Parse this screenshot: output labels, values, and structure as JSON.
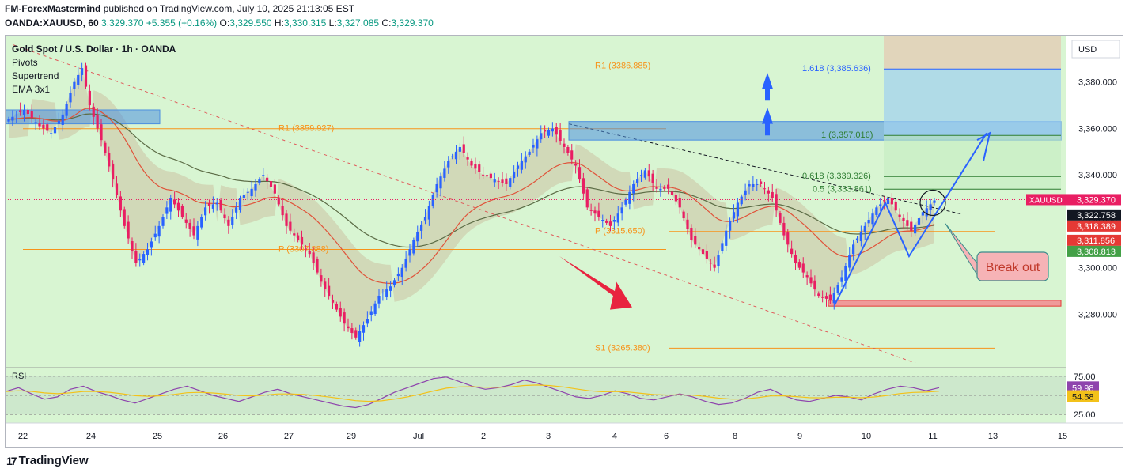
{
  "header": {
    "publisher": "FM-ForexMastermind",
    "published_text": "published on TradingView.com, July 10, 2025 21:13:05 EST",
    "symbol": "OANDA:XAUUSD, 60",
    "last": "3,329.370",
    "change": "+5.355 (+0.16%)",
    "o_label": "O:",
    "o": "3,329.550",
    "h_label": "H:",
    "h": "3,330.315",
    "l_label": "L:",
    "l": "3,327.085",
    "c_label": "C:",
    "c": "3,329.370"
  },
  "legend": {
    "title": "Gold Spot / U.S. Dollar · 1h · OANDA",
    "items": [
      "Pivots",
      "Supertrend",
      "EMA 3x1"
    ]
  },
  "rsi_label": "RSI",
  "currency": "USD",
  "footer": {
    "logo_glyph": "17",
    "brand": "TradingView"
  },
  "colors": {
    "background": "#d8f5d2",
    "up_candle": "#2962ff",
    "down_candle": "#e91e63",
    "pivot": "#f7931a",
    "zone": "#4c8fe0",
    "ema_fast": "#e0533a",
    "ema_slow": "#5b6b45",
    "rsi": "#8e44ad",
    "rsi_ma": "#f3c21a"
  },
  "chart_data": {
    "type": "candlestick",
    "x_ticks": [
      "22",
      "24",
      "25",
      "26",
      "27",
      "29",
      "Jul",
      "2",
      "3",
      "4",
      "6",
      "8",
      "9",
      "10",
      "11",
      "13",
      "15"
    ],
    "y_ticks": [
      "3,380.000",
      "3,360.000",
      "3,340.000",
      "3,320.000",
      "3,300.000",
      "3,280.000"
    ],
    "ylim": [
      3257,
      3400
    ],
    "close_path": [
      [
        0,
        3364
      ],
      [
        4,
        3368
      ],
      [
        8,
        3361
      ],
      [
        11,
        3358
      ],
      [
        14,
        3366
      ],
      [
        17,
        3380
      ],
      [
        19,
        3386
      ],
      [
        21,
        3370
      ],
      [
        24,
        3355
      ],
      [
        27,
        3338
      ],
      [
        30,
        3318
      ],
      [
        33,
        3302
      ],
      [
        36,
        3308
      ],
      [
        39,
        3318
      ],
      [
        42,
        3330
      ],
      [
        45,
        3322
      ],
      [
        48,
        3314
      ],
      [
        51,
        3326
      ],
      [
        54,
        3328
      ],
      [
        57,
        3318
      ],
      [
        60,
        3330
      ],
      [
        63,
        3334
      ],
      [
        66,
        3340
      ],
      [
        69,
        3332
      ],
      [
        72,
        3318
      ],
      [
        75,
        3312
      ],
      [
        78,
        3306
      ],
      [
        81,
        3294
      ],
      [
        84,
        3285
      ],
      [
        87,
        3276
      ],
      [
        90,
        3270
      ],
      [
        93,
        3278
      ],
      [
        96,
        3288
      ],
      [
        99,
        3292
      ],
      [
        102,
        3300
      ],
      [
        105,
        3312
      ],
      [
        108,
        3322
      ],
      [
        111,
        3336
      ],
      [
        114,
        3346
      ],
      [
        117,
        3352
      ],
      [
        120,
        3344
      ],
      [
        123,
        3340
      ],
      [
        126,
        3338
      ],
      [
        129,
        3336
      ],
      [
        132,
        3344
      ],
      [
        135,
        3350
      ],
      [
        138,
        3358
      ],
      [
        141,
        3360
      ],
      [
        144,
        3352
      ],
      [
        147,
        3344
      ],
      [
        150,
        3326
      ],
      [
        153,
        3322
      ],
      [
        156,
        3318
      ],
      [
        159,
        3326
      ],
      [
        162,
        3336
      ],
      [
        165,
        3342
      ],
      [
        168,
        3334
      ],
      [
        171,
        3334
      ],
      [
        174,
        3326
      ],
      [
        177,
        3312
      ],
      [
        180,
        3306
      ],
      [
        183,
        3300
      ],
      [
        186,
        3316
      ],
      [
        189,
        3328
      ],
      [
        192,
        3336
      ],
      [
        195,
        3336
      ],
      [
        198,
        3330
      ],
      [
        201,
        3314
      ],
      [
        204,
        3302
      ],
      [
        207,
        3296
      ],
      [
        210,
        3288
      ],
      [
        213,
        3286
      ],
      [
        216,
        3296
      ],
      [
        219,
        3310
      ],
      [
        222,
        3318
      ],
      [
        225,
        3326
      ],
      [
        228,
        3330
      ],
      [
        231,
        3322
      ],
      [
        234,
        3316
      ],
      [
        237,
        3324
      ],
      [
        240,
        3329
      ]
    ],
    "pivots": [
      {
        "label": "R1 (3386.885)",
        "value": 3386.885
      },
      {
        "label": "R1 (3359.927)",
        "value": 3359.927
      },
      {
        "label": "P (3315.650)",
        "value": 3315.65
      },
      {
        "label": "P (3307.888)",
        "value": 3307.888
      },
      {
        "label": "S1 (3265.380)",
        "value": 3265.38
      }
    ],
    "fibonacci": [
      {
        "label": "1.618 (3,385.636)",
        "value": 3385.636
      },
      {
        "label": "1 (3,357.016)",
        "value": 3357.016
      },
      {
        "label": "0.618 (3,339.326)",
        "value": 3339.326
      },
      {
        "label": "0.5 (3,333.861)",
        "value": 3333.861
      }
    ],
    "price_labels": [
      {
        "text": "XAUUSD",
        "value_text": "3,329.370",
        "value": 3329.37,
        "color": "#e91e63"
      },
      {
        "text": "",
        "value_text": "3,322.758",
        "value": 3322.758,
        "color": "#131722"
      },
      {
        "text": "",
        "value_text": "3,318.389",
        "value": 3318.389,
        "color": "#e53935"
      },
      {
        "text": "",
        "value_text": "3,311.856",
        "value": 3311.856,
        "color": "#e53935"
      },
      {
        "text": "",
        "value_text": "3,308.813",
        "value": 3308.813,
        "color": "#43a047"
      }
    ],
    "annotation": "Break out",
    "rsi": {
      "ticks": [
        "75.00",
        "50.00",
        "25.00"
      ],
      "value": "59.98",
      "ma_value": "54.58",
      "series": [
        55,
        60,
        52,
        45,
        48,
        58,
        62,
        55,
        50,
        44,
        40,
        46,
        52,
        58,
        62,
        56,
        50,
        46,
        42,
        48,
        54,
        58,
        52,
        48,
        44,
        40,
        36,
        34,
        38,
        46,
        54,
        60,
        66,
        72,
        74,
        68,
        62,
        58,
        60,
        64,
        70,
        66,
        60,
        54,
        48,
        46,
        50,
        56,
        52,
        46,
        44,
        48,
        52,
        48,
        42,
        38,
        40,
        46,
        54,
        58,
        50,
        44,
        42,
        46,
        50,
        48,
        44,
        52,
        58,
        62,
        60,
        56,
        60
      ]
    }
  }
}
